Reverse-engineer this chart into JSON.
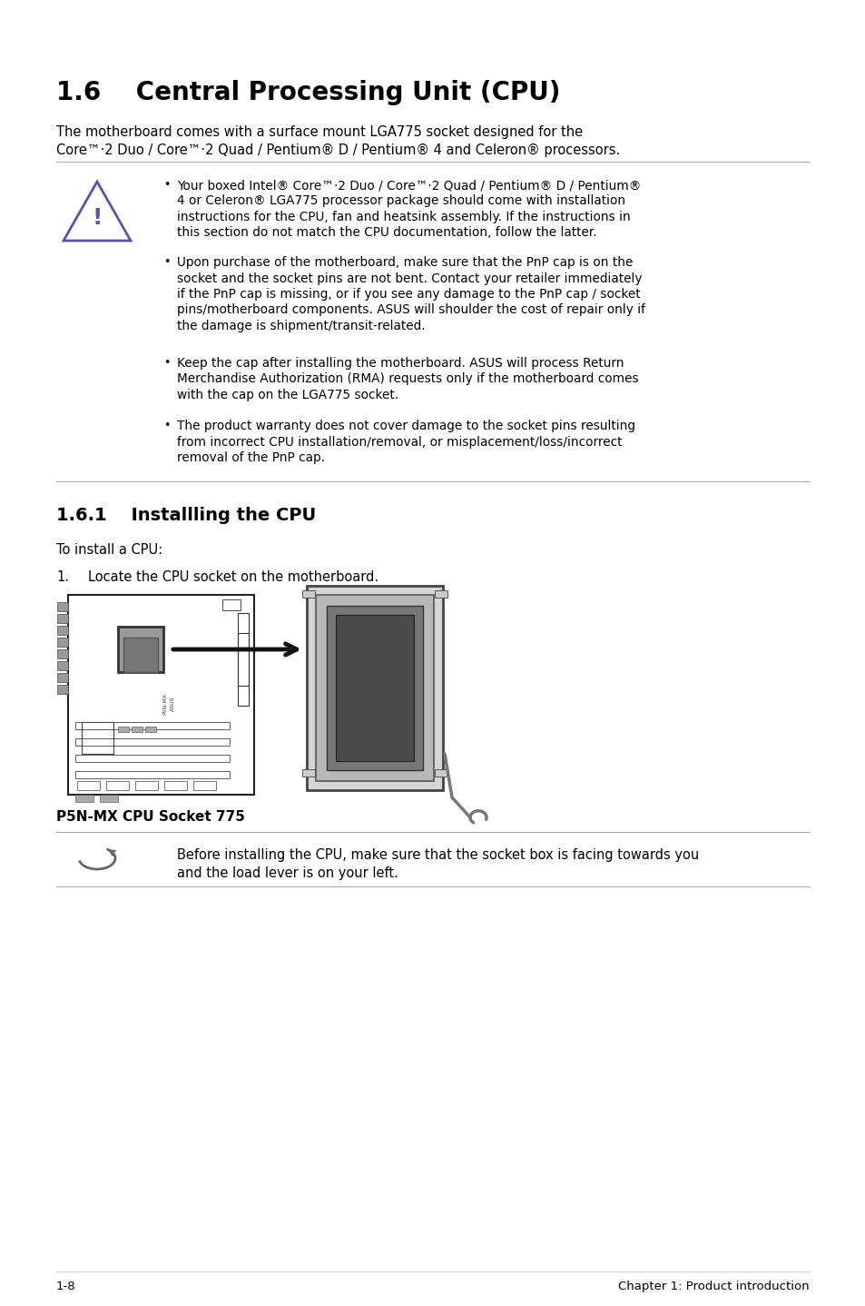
{
  "title": "1.6    Central Processing Unit (CPU)",
  "subtitle_line1": "The motherboard comes with a surface mount LGA775 socket designed for the",
  "subtitle_line2": "Core™·2 Duo / Core™·2 Quad / Pentium® D / Pentium® 4 and Celeron® processors.",
  "bullet1_line1": "Your boxed Intel® Core™·2 Duo / Core™·2 Quad / Pentium® D / Pentium®",
  "bullet1_line2": "4 or Celeron® LGA775 processor package should come with installation",
  "bullet1_line3": "instructions for the CPU, fan and heatsink assembly. If the instructions in",
  "bullet1_line4": "this section do not match the CPU documentation, follow the latter.",
  "bullet2_line1": "Upon purchase of the motherboard, make sure that the PnP cap is on the",
  "bullet2_line2": "socket and the socket pins are not bent. Contact your retailer immediately",
  "bullet2_line3": "if the PnP cap is missing, or if you see any damage to the PnP cap / socket",
  "bullet2_line4": "pins/motherboard components. ASUS will shoulder the cost of repair only if",
  "bullet2_line5": "the damage is shipment/transit-related.",
  "bullet3_line1": "Keep the cap after installing the motherboard. ASUS will process Return",
  "bullet3_line2": "Merchandise Authorization (RMA) requests only if the motherboard comes",
  "bullet3_line3": "with the cap on the LGA775 socket.",
  "bullet4_line1": "The product warranty does not cover damage to the socket pins resulting",
  "bullet4_line2": "from incorrect CPU installation/removal, or misplacement/loss/incorrect",
  "bullet4_line3": "removal of the PnP cap.",
  "section_title": "1.6.1    Installling the CPU",
  "install_intro": "To install a CPU:",
  "step1_num": "1.",
  "step1_text": "Locate the CPU socket on the motherboard.",
  "image_caption": "P5N-MX CPU Socket 775",
  "note_line1": "Before installing the CPU, make sure that the socket box is facing towards you",
  "note_line2": "and the load lever is on your left.",
  "footer_left": "1-8",
  "footer_right": "Chapter 1: Product introduction",
  "bg_color": "#ffffff",
  "warn_icon_color": "#5555aa",
  "line_color": "#aaaaaa",
  "text_color": "#000000"
}
